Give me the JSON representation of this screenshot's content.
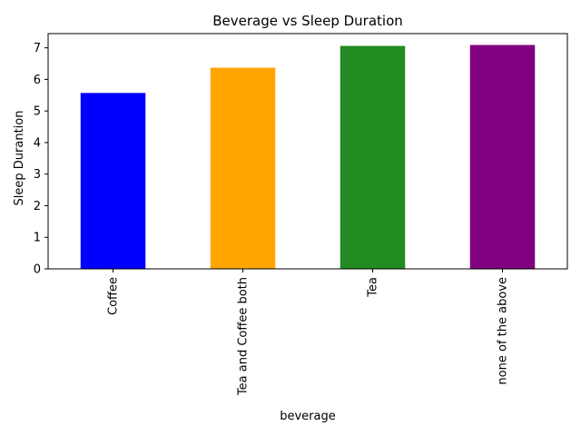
{
  "chart_data": {
    "type": "bar",
    "title": "Beverage vs Sleep Duration",
    "xlabel": "beverage",
    "ylabel": "Sleep Durantion",
    "categories": [
      "Coffee",
      "Tea and Coffee both",
      "Tea",
      "none of the above"
    ],
    "values": [
      5.57,
      6.37,
      7.06,
      7.09
    ],
    "colors": [
      "#0000ff",
      "#ffa500",
      "#228b22",
      "#800080"
    ],
    "ylim": [
      0,
      7.45
    ],
    "yticks": [
      "0",
      "1",
      "2",
      "3",
      "4",
      "5",
      "6",
      "7"
    ],
    "grid": false,
    "legend": "none"
  }
}
